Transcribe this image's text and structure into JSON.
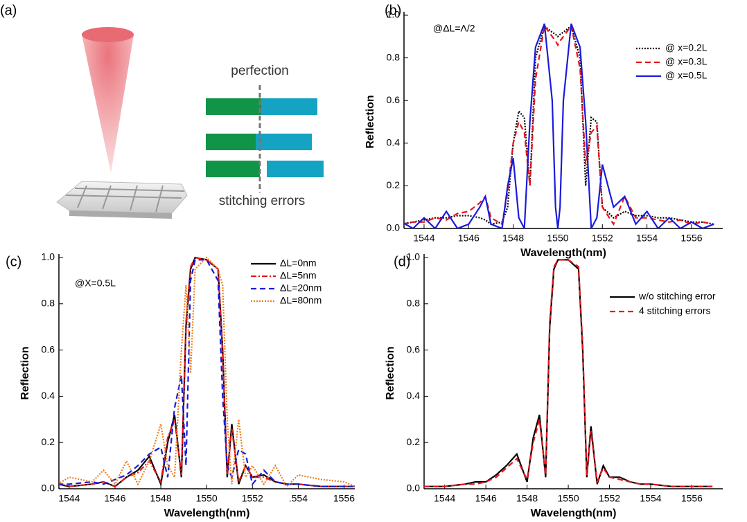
{
  "panel_a": {
    "label": "(a)",
    "top_text": "perfection",
    "bottom_text": "stitching errors"
  },
  "chart_data": [
    {
      "type": "line",
      "panel_label": "(b)",
      "annotation": "@ΔL=Λ/2",
      "xlabel": "Wavelength(nm)",
      "ylabel": "Reflection",
      "legend": "upper right",
      "xlim": [
        1543.1,
        1557.4
      ],
      "ylim": [
        0,
        1.0
      ],
      "xticks": [
        1544,
        1546,
        1548,
        1550,
        1552,
        1554,
        1556
      ],
      "yticks": [
        {
          "value": 0,
          "label": "0.0"
        },
        {
          "value": 0.2,
          "label": "0.2"
        },
        {
          "value": 0.4,
          "label": "0.4"
        },
        {
          "value": 0.6,
          "label": "0.6"
        },
        {
          "value": 0.8,
          "label": "0.8"
        },
        {
          "value": 1.0,
          "label": "1.0"
        }
      ],
      "x": [
        1543,
        1543.5,
        1544,
        1544.5,
        1545,
        1545.5,
        1546,
        1546.5,
        1546.75,
        1547,
        1547.5,
        1547.75,
        1548,
        1548.25,
        1548.5,
        1548.75,
        1549,
        1549.4,
        1549.75,
        1549.9,
        1550,
        1550.1,
        1550.25,
        1550.6,
        1551,
        1551.25,
        1551.5,
        1551.75,
        1552,
        1552.5,
        1553,
        1553.5,
        1554,
        1554.5,
        1555,
        1555.5,
        1556,
        1556.5,
        1557
      ],
      "series": [
        {
          "name": "@ x=0.2L",
          "color": "#000000",
          "style": "dotted",
          "values": [
            0.02,
            0.03,
            0.04,
            0.05,
            0.05,
            0.06,
            0.06,
            0.05,
            0.04,
            0.02,
            0.03,
            0.1,
            0.4,
            0.55,
            0.52,
            0.2,
            0.8,
            0.95,
            0.92,
            0.91,
            0.9,
            0.91,
            0.92,
            0.95,
            0.8,
            0.2,
            0.52,
            0.5,
            0.1,
            0.05,
            0.08,
            0.06,
            0.06,
            0.05,
            0.05,
            0.04,
            0.03,
            0.03,
            0.02
          ]
        },
        {
          "name": "@ x=0.3L",
          "color": "#e8141c",
          "style": "dashed",
          "values": [
            0.02,
            0.03,
            0.03,
            0.05,
            0.04,
            0.07,
            0.08,
            0.12,
            0.15,
            0.05,
            0.02,
            0.17,
            0.4,
            0.5,
            0.45,
            0.2,
            0.7,
            0.95,
            0.9,
            0.88,
            0.86,
            0.88,
            0.9,
            0.95,
            0.75,
            0.3,
            0.45,
            0.48,
            0.1,
            0.02,
            0.15,
            0.05,
            0.05,
            0.04,
            0.03,
            0.04,
            0.02,
            0.03,
            0.02
          ]
        },
        {
          "name": "@ x=0.5L",
          "color": "#1a1adc",
          "style": "solid",
          "values": [
            0.03,
            0,
            0.05,
            0,
            0.08,
            0,
            0.02,
            0.1,
            0.15,
            0.02,
            0,
            0.2,
            0.33,
            0.05,
            0,
            0.5,
            0.85,
            0.96,
            0.6,
            0.1,
            0,
            0.1,
            0.6,
            0.96,
            0.85,
            0.5,
            0,
            0.05,
            0.3,
            0.1,
            0.15,
            0.02,
            0.08,
            0,
            0.05,
            0,
            0.03,
            0,
            0.02
          ]
        }
      ]
    },
    {
      "type": "line",
      "panel_label": "(c)",
      "annotation": "@X=0.5L",
      "xlabel": "Wavelength(nm)",
      "ylabel": "Reflection",
      "legend": "upper right",
      "xlim": [
        1543.55,
        1556.47
      ],
      "ylim": [
        0,
        1.0
      ],
      "xticks": [
        1544,
        1546,
        1548,
        1550,
        1552,
        {
          "value": 1554,
          "label": ".554"
        },
        1556
      ],
      "yticks": [
        {
          "value": 0,
          "label": "0.0"
        },
        {
          "value": 0.2,
          "label": "0.2"
        },
        {
          "value": 0.4,
          "label": "0.4"
        },
        {
          "value": 0.6,
          "label": "0.6"
        },
        {
          "value": 0.8,
          "label": "0.8"
        },
        {
          "value": 1.0,
          "label": "1.0"
        }
      ],
      "x": [
        1543.5,
        1544,
        1545,
        1545.5,
        1546,
        1546.5,
        1547,
        1547.5,
        1548,
        1548.3,
        1548.6,
        1548.9,
        1549.1,
        1549.3,
        1549.5,
        1550,
        1550.5,
        1550.7,
        1550.9,
        1551.1,
        1551.4,
        1551.7,
        1552,
        1552.5,
        1553,
        1553.5,
        1554,
        1555,
        1556,
        1556.5
      ],
      "series": [
        {
          "name": "ΔL=0nm",
          "color": "#000000",
          "style": "solid",
          "values": [
            0.02,
            0.01,
            0.02,
            0.03,
            0.01,
            0.05,
            0.08,
            0.14,
            0.02,
            0.2,
            0.32,
            0.05,
            0.7,
            0.95,
            1.0,
            0.99,
            0.95,
            0.6,
            0.05,
            0.28,
            0.02,
            0.1,
            0.05,
            0.06,
            0.03,
            0.02,
            0.02,
            0.01,
            0.01,
            0.01
          ]
        },
        {
          "name": "ΔL=5nm",
          "color": "#e8141c",
          "style": "dashdot",
          "values": [
            0.02,
            0.01,
            0.02,
            0.03,
            0.01,
            0.05,
            0.07,
            0.12,
            0.03,
            0.22,
            0.3,
            0.06,
            0.72,
            0.96,
            1.0,
            0.99,
            0.95,
            0.58,
            0.06,
            0.26,
            0.03,
            0.1,
            0.05,
            0.05,
            0.03,
            0.02,
            0.02,
            0.01,
            0.01,
            0.01
          ]
        },
        {
          "name": "ΔL=20nm",
          "color": "#1a1adc",
          "style": "dashed",
          "values": [
            0.02,
            0.02,
            0.03,
            0.02,
            0.04,
            0.06,
            0.1,
            0.15,
            0.18,
            0.05,
            0.35,
            0.49,
            0.1,
            0.9,
            0.99,
            0.99,
            0.9,
            0.4,
            0.1,
            0.05,
            0.17,
            0.15,
            0.02,
            0.08,
            0.03,
            0.02,
            0.02,
            0.01,
            0.01,
            0.01
          ]
        },
        {
          "name": "ΔL=80nm",
          "color": "#f07d1a",
          "style": "dotted",
          "values": [
            0.02,
            0.05,
            0.03,
            0.08,
            0.02,
            0.12,
            0.02,
            0.12,
            0.28,
            0.1,
            0.05,
            0.6,
            0.88,
            0.5,
            0.95,
            1.0,
            0.95,
            0.88,
            0.3,
            0.02,
            0.3,
            0.05,
            0.1,
            0.02,
            0.1,
            0.01,
            0.06,
            0.04,
            0.03,
            0.01
          ]
        }
      ]
    },
    {
      "type": "line",
      "panel_label": "(d)",
      "xlabel": "Wavelength(nm)",
      "ylabel": "Reflection",
      "legend": "upper right",
      "xlim": [
        1543,
        1557.5
      ],
      "ylim": [
        0,
        1.0
      ],
      "xticks": [
        1544,
        1546,
        1548,
        1550,
        1552,
        1554,
        1556
      ],
      "yticks": [
        {
          "value": 0,
          "label": "0.0"
        },
        {
          "value": 0.2,
          "label": "0.2"
        },
        {
          "value": 0.4,
          "label": "0.4"
        },
        {
          "value": 0.6,
          "label": "0.6"
        },
        {
          "value": 0.8,
          "label": "0.8"
        },
        {
          "value": 1.0,
          "label": "1.0"
        }
      ],
      "x": [
        1543,
        1544,
        1545,
        1545.5,
        1546,
        1546.5,
        1547,
        1547.5,
        1548,
        1548.3,
        1548.6,
        1548.9,
        1549.1,
        1549.3,
        1549.5,
        1550,
        1550.5,
        1550.7,
        1550.9,
        1551.1,
        1551.4,
        1551.7,
        1552,
        1552.5,
        1553,
        1553.5,
        1554,
        1555,
        1556,
        1557
      ],
      "series": [
        {
          "name": "w/o stitching error",
          "color": "#000000",
          "style": "solid",
          "values": [
            0.01,
            0.01,
            0.02,
            0.03,
            0.03,
            0.06,
            0.1,
            0.15,
            0.03,
            0.22,
            0.32,
            0.05,
            0.7,
            0.95,
            0.99,
            0.99,
            0.95,
            0.6,
            0.05,
            0.27,
            0.02,
            0.1,
            0.05,
            0.05,
            0.03,
            0.02,
            0.02,
            0.01,
            0.01,
            0.01
          ]
        },
        {
          "name": "4 stitching errors",
          "color": "#e8141c",
          "style": "dashed",
          "values": [
            0.01,
            0.01,
            0.02,
            0.02,
            0.03,
            0.05,
            0.09,
            0.13,
            0.04,
            0.2,
            0.3,
            0.06,
            0.72,
            0.96,
            0.99,
            0.99,
            0.96,
            0.62,
            0.06,
            0.25,
            0.03,
            0.09,
            0.05,
            0.04,
            0.03,
            0.02,
            0.02,
            0.01,
            0.01,
            0.01
          ]
        }
      ]
    }
  ]
}
